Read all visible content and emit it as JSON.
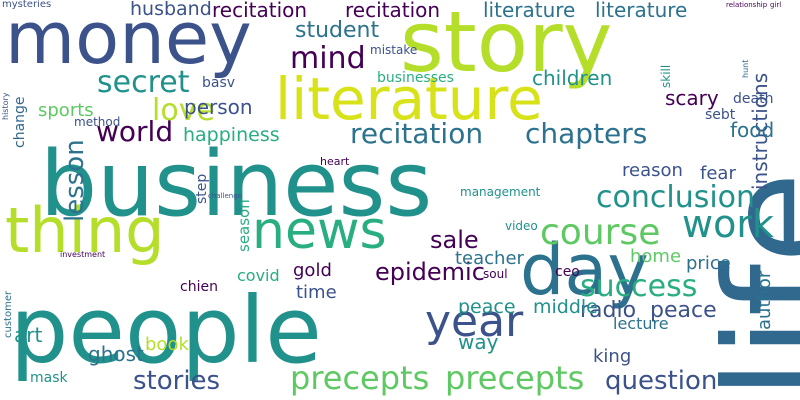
{
  "palette": {
    "purple": "#440154",
    "indigo": "#3b528b",
    "navy": "#31688e",
    "blue": "#2c728e",
    "teal": "#21918c",
    "green": "#28ae80",
    "lightgreen": "#5ec962",
    "lime": "#b5de2b",
    "yellow": "#d8e219"
  },
  "words": [
    "life",
    "business",
    "story",
    "people",
    "money",
    "literature",
    "thing",
    "news",
    "day",
    "year",
    "precepts",
    "work",
    "course",
    "conclusion",
    "recitation",
    "chapters",
    "success",
    "secret",
    "world",
    "mind",
    "love",
    "question",
    "epidemic",
    "sale",
    "stories",
    "radio",
    "peace",
    "middle",
    "lesson",
    "scary",
    "literature",
    "recitation",
    "husband",
    "student",
    "ghost",
    "happiness",
    "person",
    "children",
    "instructions",
    "sports",
    "time",
    "teacher",
    "home",
    "book",
    "way",
    "king",
    "food",
    "fear",
    "reason",
    "art",
    "author",
    "gold",
    "covid",
    "lecture",
    "price",
    "mask",
    "death",
    "sebt",
    "management",
    "ceo",
    "step",
    "season",
    "basv",
    "heart",
    "mistake",
    "businesses",
    "change",
    "method",
    "soul",
    "video",
    "skill",
    "hunt",
    "history",
    "mysteries",
    "customer",
    "challenge",
    "investment",
    "chien",
    "relationship",
    "girl"
  ]
}
